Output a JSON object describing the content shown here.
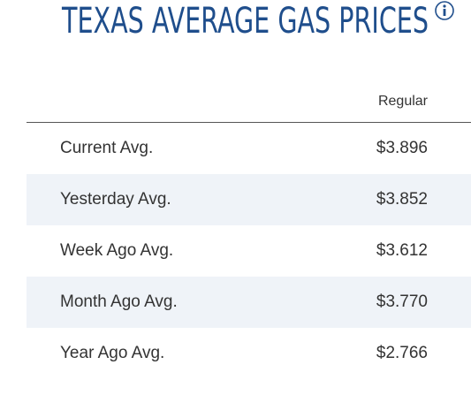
{
  "header": {
    "title": "TEXAS AVERAGE GAS PRICES"
  },
  "table": {
    "columns": [
      "Regular"
    ],
    "rows": [
      [
        "Current Avg.",
        "$3.896"
      ],
      [
        "Yesterday Avg.",
        "$3.852"
      ],
      [
        "Week Ago Avg.",
        "$3.612"
      ],
      [
        "Month Ago Avg.",
        "$3.770"
      ],
      [
        "Year Ago Avg.",
        "$2.766"
      ]
    ]
  }
}
